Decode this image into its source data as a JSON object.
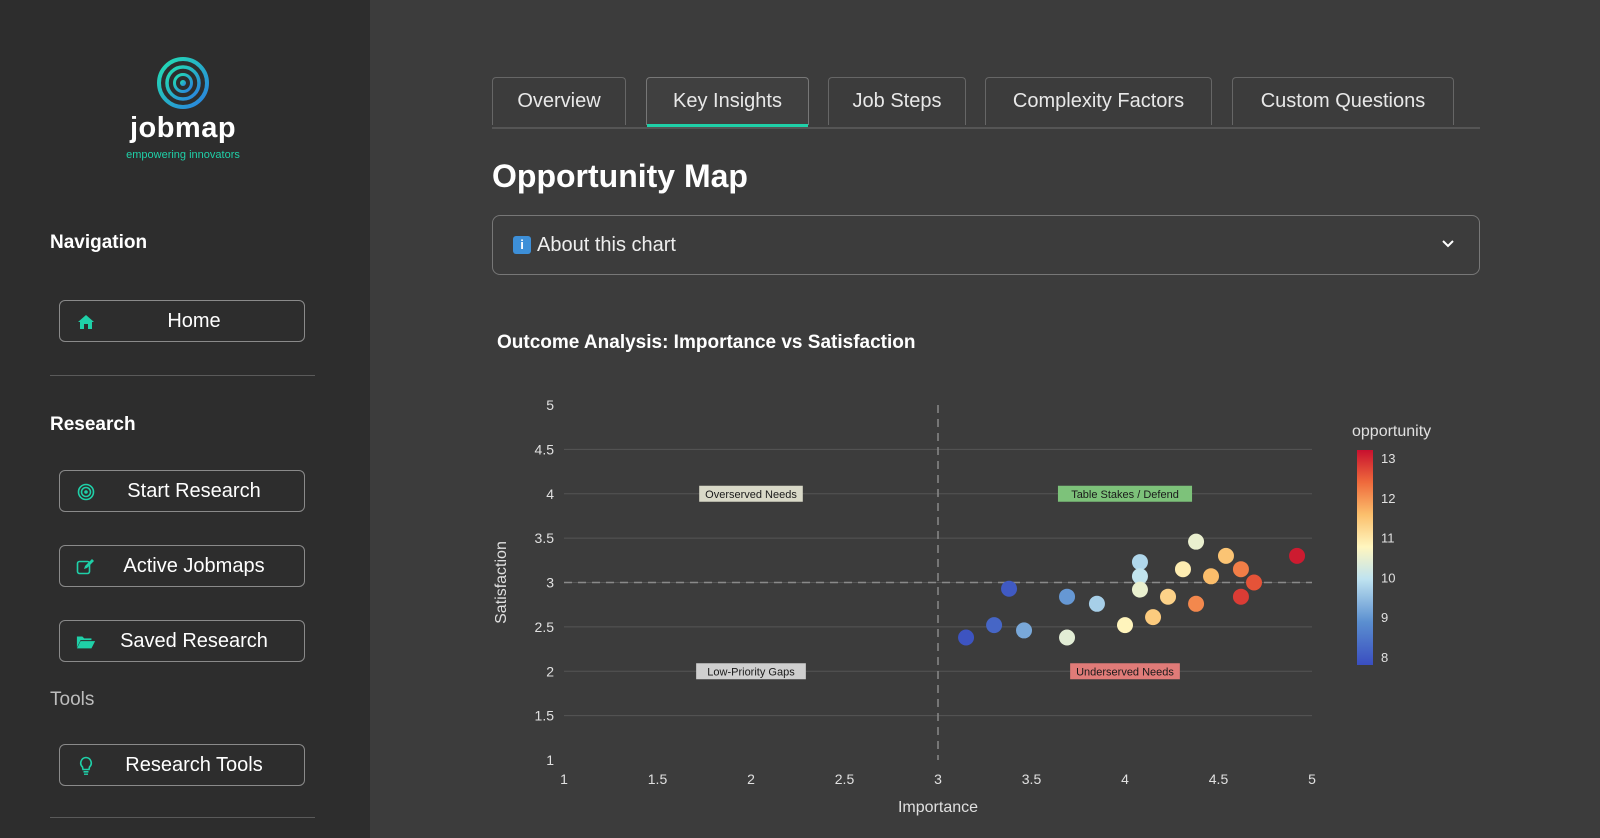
{
  "app": {
    "name": "jobmap",
    "tagline": "empowering innovators"
  },
  "sidebar": {
    "navigation_title": "Navigation",
    "home_label": "Home",
    "research_title": "Research",
    "start_research_label": "Start Research",
    "active_jobmaps_label": "Active Jobmaps",
    "saved_research_label": "Saved Research",
    "tools_title": "Tools",
    "research_tools_label": "Research Tools",
    "icons": [
      "home-icon",
      "target-icon",
      "edit-icon",
      "folder-open-icon",
      "lightbulb-icon"
    ]
  },
  "tabs": [
    "Overview",
    "Key Insights",
    "Job Steps",
    "Complexity Factors",
    "Custom Questions"
  ],
  "active_tab": "Key Insights",
  "page_title": "Opportunity Map",
  "expander": {
    "icon": "info-icon",
    "label": "About this chart"
  },
  "colors": {
    "accent": "#1fd0a8",
    "background": "#3c3c3c",
    "sidebar": "#2d2d2d"
  },
  "chart_data": {
    "type": "scatter",
    "title": "Outcome Analysis: Importance vs Satisfaction",
    "xlabel": "Importance",
    "ylabel": "Satisfaction",
    "xlim": [
      1,
      5
    ],
    "ylim": [
      1,
      5
    ],
    "x_ticks": [
      "1",
      "1.5",
      "2",
      "2.5",
      "3",
      "3.5",
      "4",
      "4.5",
      "5"
    ],
    "y_ticks": [
      "1",
      "1.5",
      "2",
      "2.5",
      "3",
      "3.5",
      "4",
      "4.5",
      "5"
    ],
    "reference_lines": {
      "x": 3,
      "y": 3
    },
    "quadrant_labels": [
      {
        "text": "Overserved Needs",
        "x": 2,
        "y": 4,
        "color": "#d9d9c8"
      },
      {
        "text": "Table Stakes / Defend",
        "x": 4,
        "y": 4,
        "color": "#7dc27a"
      },
      {
        "text": "Low-Priority Gaps",
        "x": 2,
        "y": 2,
        "color": "#cfcfcf"
      },
      {
        "text": "Underserved Needs",
        "x": 4,
        "y": 2,
        "color": "#e07b78"
      }
    ],
    "colorbar": {
      "title": "opportunity",
      "min": 7.8,
      "max": 13.2,
      "ticks": [
        "8",
        "9",
        "10",
        "11",
        "12",
        "13"
      ]
    },
    "points": [
      {
        "x": 3.15,
        "y": 2.38,
        "opportunity": 7.9
      },
      {
        "x": 3.3,
        "y": 2.52,
        "opportunity": 8.2
      },
      {
        "x": 3.38,
        "y": 2.93,
        "opportunity": 8.0
      },
      {
        "x": 3.46,
        "y": 2.46,
        "opportunity": 9.2
      },
      {
        "x": 3.69,
        "y": 2.84,
        "opportunity": 9.0
      },
      {
        "x": 3.69,
        "y": 2.38,
        "opportunity": 10.4
      },
      {
        "x": 3.85,
        "y": 2.76,
        "opportunity": 9.7
      },
      {
        "x": 4.0,
        "y": 2.52,
        "opportunity": 10.8
      },
      {
        "x": 4.08,
        "y": 3.23,
        "opportunity": 9.8
      },
      {
        "x": 4.08,
        "y": 3.07,
        "opportunity": 10.0
      },
      {
        "x": 4.08,
        "y": 2.92,
        "opportunity": 10.5
      },
      {
        "x": 4.15,
        "y": 2.61,
        "opportunity": 11.4
      },
      {
        "x": 4.23,
        "y": 2.84,
        "opportunity": 11.3
      },
      {
        "x": 4.31,
        "y": 3.15,
        "opportunity": 10.9
      },
      {
        "x": 4.38,
        "y": 3.46,
        "opportunity": 10.5
      },
      {
        "x": 4.38,
        "y": 2.76,
        "opportunity": 12.1
      },
      {
        "x": 4.46,
        "y": 3.07,
        "opportunity": 11.6
      },
      {
        "x": 4.54,
        "y": 3.3,
        "opportunity": 11.5
      },
      {
        "x": 4.62,
        "y": 3.15,
        "opportunity": 12.2
      },
      {
        "x": 4.62,
        "y": 2.84,
        "opportunity": 12.8
      },
      {
        "x": 4.69,
        "y": 3.0,
        "opportunity": 12.6
      },
      {
        "x": 4.92,
        "y": 3.3,
        "opportunity": 13.1
      }
    ]
  }
}
